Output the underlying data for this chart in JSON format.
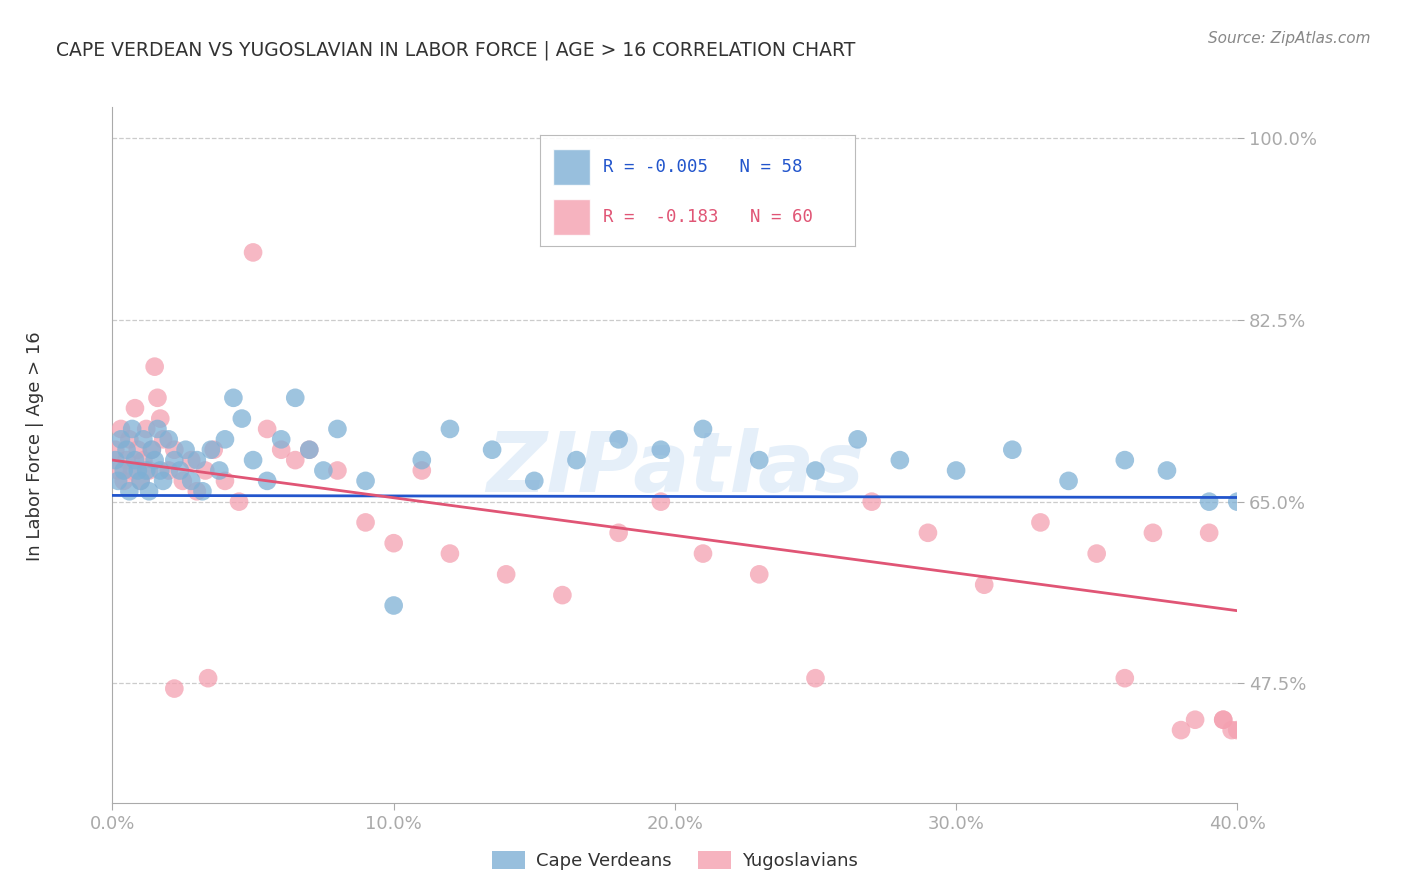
{
  "title": "CAPE VERDEAN VS YUGOSLAVIAN IN LABOR FORCE | AGE > 16 CORRELATION CHART",
  "source": "Source: ZipAtlas.com",
  "ylabel": "In Labor Force | Age > 16",
  "xlabel_ticks": [
    "0.0%",
    "10.0%",
    "20.0%",
    "30.0%",
    "40.0%"
  ],
  "xlabel_vals": [
    0.0,
    0.1,
    0.2,
    0.3,
    0.4
  ],
  "ytick_labels": [
    "100.0%",
    "82.5%",
    "65.0%",
    "47.5%"
  ],
  "ytick_vals": [
    1.0,
    0.825,
    0.65,
    0.475
  ],
  "xmin": 0.0,
  "xmax": 0.4,
  "ymin": 0.36,
  "ymax": 1.03,
  "blue_color": "#7EB0D5",
  "pink_color": "#F4A0B0",
  "line_blue": "#2255CC",
  "line_pink": "#E05575",
  "legend_blue_label": "R = -0.005   N = 58",
  "legend_pink_label": "R =  -0.183   N = 60",
  "blue_scatter_x": [
    0.001,
    0.002,
    0.003,
    0.004,
    0.005,
    0.006,
    0.007,
    0.008,
    0.009,
    0.01,
    0.011,
    0.012,
    0.013,
    0.014,
    0.015,
    0.016,
    0.017,
    0.018,
    0.02,
    0.022,
    0.024,
    0.026,
    0.028,
    0.03,
    0.032,
    0.035,
    0.038,
    0.04,
    0.043,
    0.046,
    0.05,
    0.055,
    0.06,
    0.065,
    0.07,
    0.075,
    0.08,
    0.09,
    0.1,
    0.11,
    0.12,
    0.135,
    0.15,
    0.165,
    0.18,
    0.195,
    0.21,
    0.23,
    0.25,
    0.265,
    0.28,
    0.3,
    0.32,
    0.34,
    0.36,
    0.375,
    0.39,
    0.4
  ],
  "blue_scatter_y": [
    0.69,
    0.67,
    0.71,
    0.68,
    0.7,
    0.66,
    0.72,
    0.69,
    0.68,
    0.67,
    0.71,
    0.68,
    0.66,
    0.7,
    0.69,
    0.72,
    0.68,
    0.67,
    0.71,
    0.69,
    0.68,
    0.7,
    0.67,
    0.69,
    0.66,
    0.7,
    0.68,
    0.71,
    0.75,
    0.73,
    0.69,
    0.67,
    0.71,
    0.75,
    0.7,
    0.68,
    0.72,
    0.67,
    0.55,
    0.69,
    0.72,
    0.7,
    0.67,
    0.69,
    0.71,
    0.7,
    0.72,
    0.69,
    0.68,
    0.71,
    0.69,
    0.68,
    0.7,
    0.67,
    0.69,
    0.68,
    0.65,
    0.65
  ],
  "pink_scatter_x": [
    0.001,
    0.002,
    0.003,
    0.004,
    0.005,
    0.006,
    0.007,
    0.008,
    0.009,
    0.01,
    0.011,
    0.012,
    0.013,
    0.014,
    0.015,
    0.016,
    0.017,
    0.018,
    0.02,
    0.022,
    0.025,
    0.028,
    0.03,
    0.033,
    0.036,
    0.04,
    0.045,
    0.05,
    0.055,
    0.06,
    0.065,
    0.07,
    0.08,
    0.09,
    0.1,
    0.11,
    0.12,
    0.14,
    0.16,
    0.18,
    0.195,
    0.21,
    0.23,
    0.25,
    0.27,
    0.29,
    0.31,
    0.33,
    0.35,
    0.36,
    0.37,
    0.38,
    0.385,
    0.39,
    0.395,
    0.395,
    0.398,
    0.4,
    0.022,
    0.034
  ],
  "pink_scatter_y": [
    0.7,
    0.68,
    0.72,
    0.67,
    0.69,
    0.71,
    0.68,
    0.74,
    0.7,
    0.67,
    0.69,
    0.72,
    0.68,
    0.7,
    0.78,
    0.75,
    0.73,
    0.71,
    0.68,
    0.7,
    0.67,
    0.69,
    0.66,
    0.68,
    0.7,
    0.67,
    0.65,
    0.89,
    0.72,
    0.7,
    0.69,
    0.7,
    0.68,
    0.63,
    0.61,
    0.68,
    0.6,
    0.58,
    0.56,
    0.62,
    0.65,
    0.6,
    0.58,
    0.48,
    0.65,
    0.62,
    0.57,
    0.63,
    0.6,
    0.48,
    0.62,
    0.43,
    0.44,
    0.62,
    0.44,
    0.44,
    0.43,
    0.43,
    0.47,
    0.48
  ],
  "blue_trend_x": [
    0.0,
    0.4
  ],
  "blue_trend_y": [
    0.656,
    0.654
  ],
  "pink_trend_x": [
    0.0,
    0.4
  ],
  "pink_trend_y": [
    0.69,
    0.545
  ],
  "watermark": "ZIPatlas",
  "background_color": "#ffffff",
  "grid_color": "#cccccc",
  "title_color": "#333333",
  "axis_color": "#aaaaaa",
  "tick_color": "#4477CC"
}
